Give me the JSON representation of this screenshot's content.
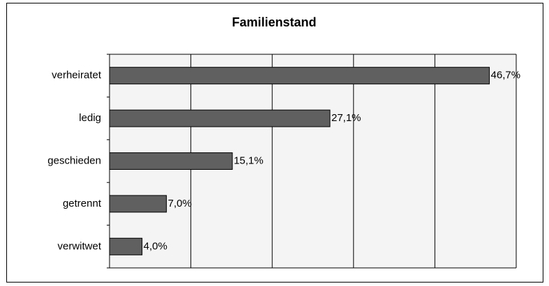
{
  "chart_data": {
    "type": "hbar",
    "title": "Familienstand",
    "categories": [
      "verheiratet",
      "ledig",
      "geschieden",
      "getrennt",
      "verwitwet"
    ],
    "values": [
      46.7,
      27.1,
      15.1,
      7.0,
      4.0
    ],
    "value_labels": [
      "46,7%",
      "27,1%",
      "15,1%",
      "7,0%",
      "4,0%"
    ],
    "color": "#606060",
    "xlim": [
      0,
      50
    ],
    "xticks": [
      0,
      10,
      20,
      30,
      40,
      50
    ],
    "grid": true
  }
}
